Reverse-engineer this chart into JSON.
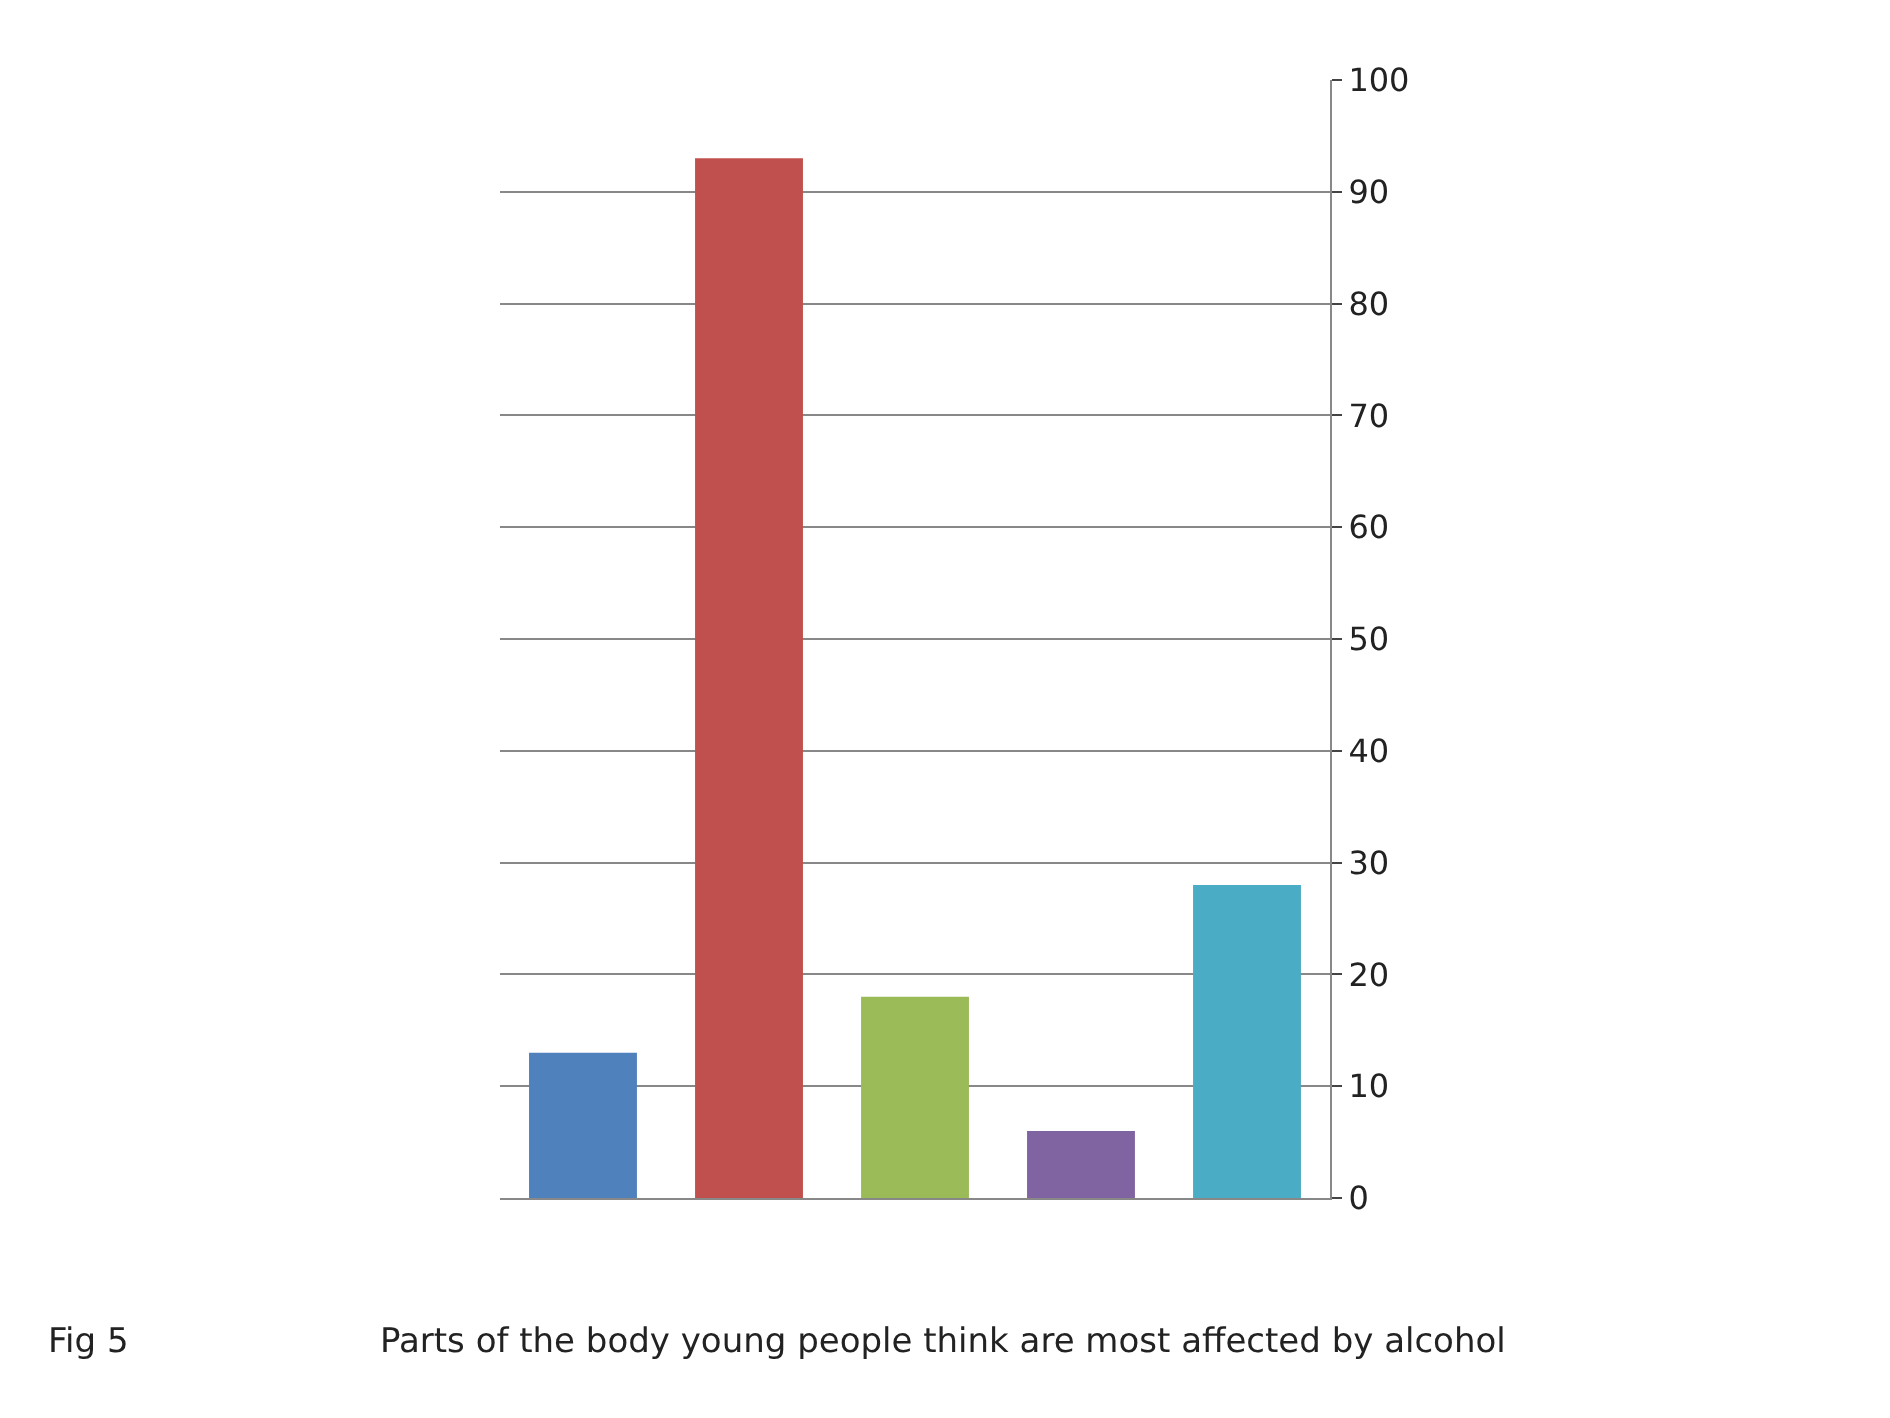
{
  "chart_data": {
    "type": "bar",
    "categories": [
      null,
      null,
      null,
      null,
      null
    ],
    "values": [
      13,
      93,
      18,
      6,
      28
    ],
    "colors": [
      "#4f81bd",
      "#c0504d",
      "#9bbb59",
      "#8064a2",
      "#4bacc6"
    ],
    "ylim": [
      0,
      100
    ],
    "yticks": [
      0,
      10,
      20,
      30,
      40,
      50,
      60,
      70,
      80,
      90,
      100
    ],
    "grid": "y",
    "annotations": [
      "Fig 5",
      "Parts of the body young people think are most affected by alcohol"
    ]
  }
}
